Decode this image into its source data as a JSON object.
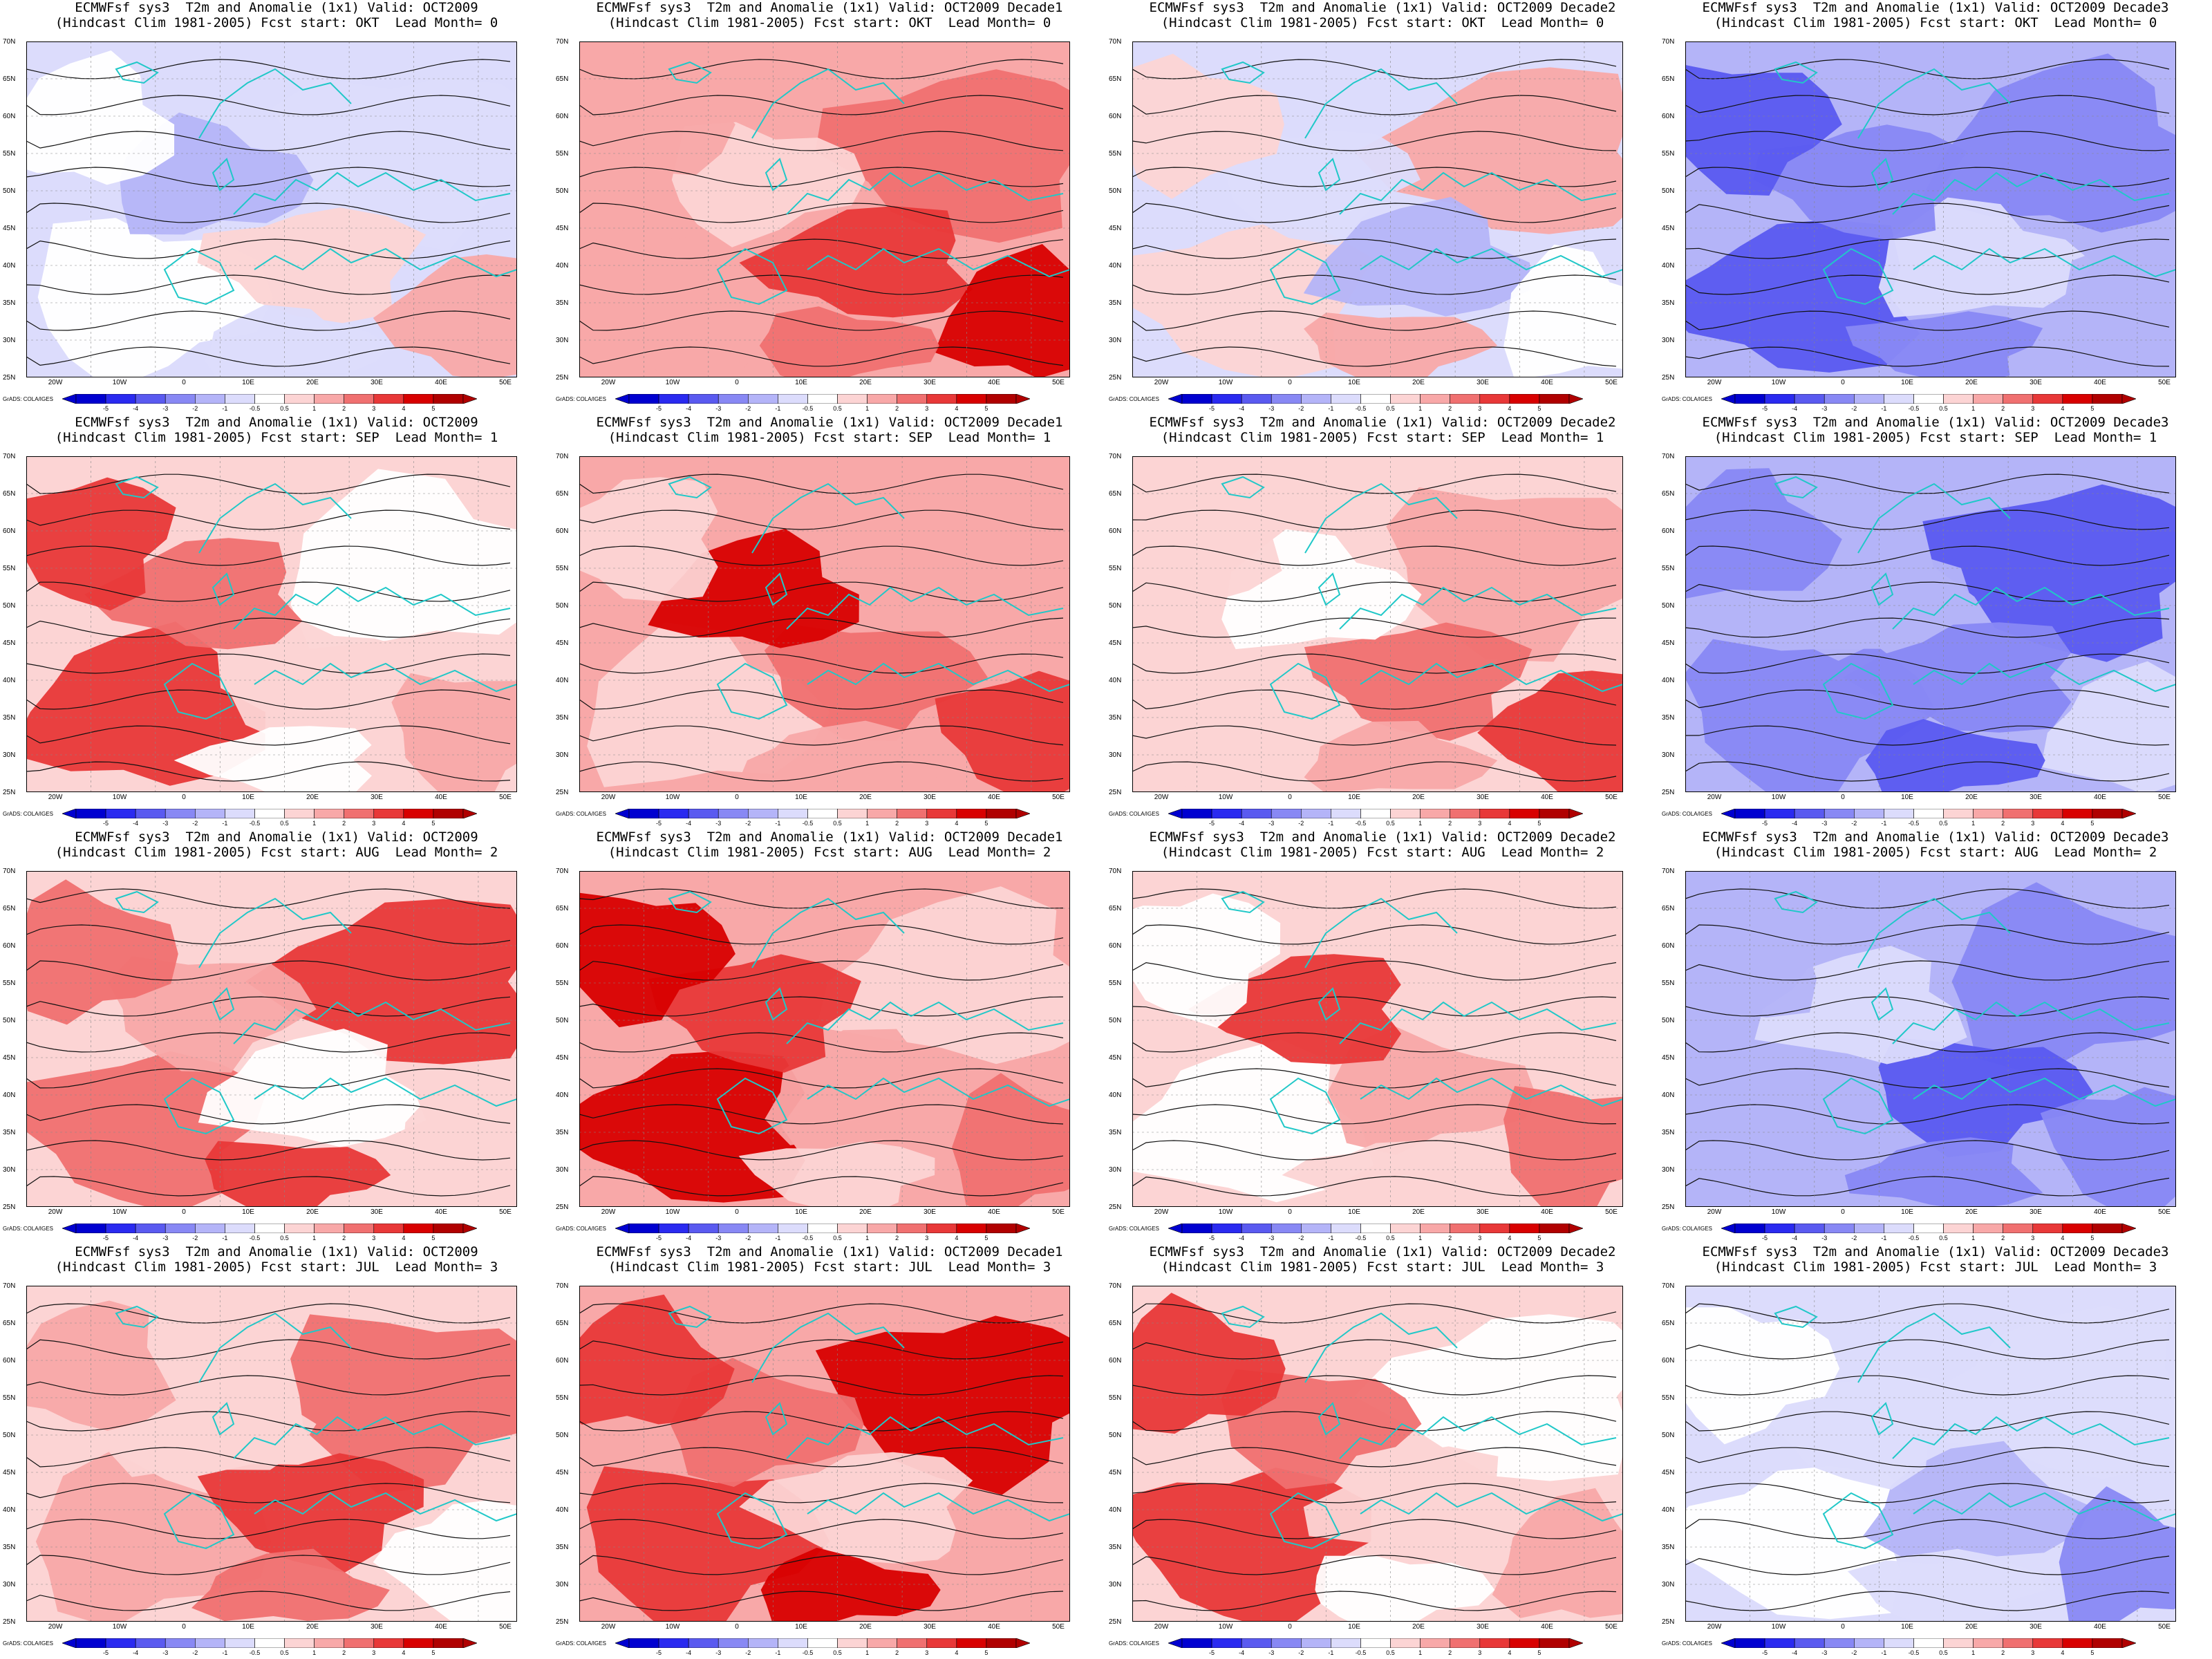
{
  "model": "ECMWFsf sys3",
  "variable": "T2m and Anomalie (1x1)",
  "hindcast": "(Hindcast Clim 1981-2005)",
  "rows": [
    {
      "start": "OKT",
      "lead": "0"
    },
    {
      "start": "SEP",
      "lead": "1"
    },
    {
      "start": "AUG",
      "lead": "2"
    },
    {
      "start": "JUL",
      "lead": "3"
    }
  ],
  "columns": [
    {
      "valid": "OCT2009"
    },
    {
      "valid": "OCT2009 Decade1"
    },
    {
      "valid": "OCT2009 Decade2"
    },
    {
      "valid": "OCT2009 Decade3"
    }
  ],
  "lat_labels": [
    "70N",
    "65N",
    "60N",
    "55N",
    "50N",
    "45N",
    "40N",
    "35N",
    "30N",
    "25N"
  ],
  "lon_labels": [
    "20W",
    "10W",
    "0",
    "10E",
    "20E",
    "30E",
    "40E",
    "50E"
  ],
  "colorbar": {
    "ticks": [
      "-5",
      "-4",
      "-3",
      "-2",
      "-1",
      "-0.5",
      "0.5",
      "1",
      "2",
      "3",
      "4",
      "5"
    ],
    "colors": [
      "#0000d0",
      "#2a2af0",
      "#5a5af0",
      "#8888f4",
      "#b4b4f8",
      "#dcdcfc",
      "#ffffff",
      "#fcd4d4",
      "#f8a8a8",
      "#f07070",
      "#e83838",
      "#d80000",
      "#b00000"
    ]
  },
  "credit": "GrADS: COLA/IGES",
  "anomaly_sign": [
    [
      "mixed",
      "warm",
      "mixed",
      "cold"
    ],
    [
      "warm-light",
      "warm",
      "warm-light",
      "cold"
    ],
    [
      "warm-light",
      "warm",
      "warm-light",
      "cold"
    ],
    [
      "warm-light",
      "warm",
      "warm-light",
      "cold-light"
    ]
  ]
}
